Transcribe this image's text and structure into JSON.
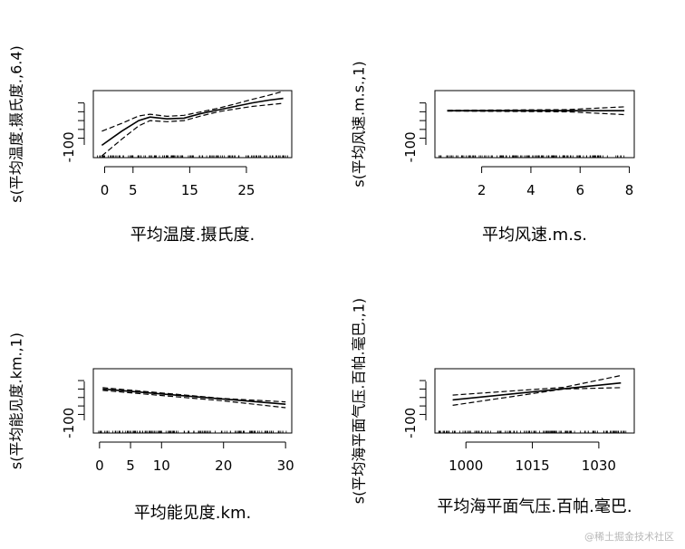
{
  "figure": {
    "type": "gam-partial-effect-panels",
    "watermark": "@稀土掘金技术社区"
  },
  "colors": {
    "axis": "#000000",
    "fit": "#000000",
    "band": "#000000",
    "rug": "#000000",
    "background": "#ffffff"
  },
  "chart_data": [
    {
      "type": "line",
      "xlabel": "平均温度.摄氏度.",
      "ylabel": "s(平均温度.摄氏度.,6.4)",
      "xticks": [
        0,
        5,
        15,
        25
      ],
      "yticks": [
        -100
      ],
      "xlim": [
        -2,
        33
      ],
      "ylim": [
        -130,
        60
      ],
      "series": [
        {
          "role": "fit",
          "x": [
            -0.5,
            3,
            6,
            8,
            11,
            14,
            17,
            20,
            23,
            26,
            29,
            31.5
          ],
          "values": [
            -95,
            -55,
            -25,
            -15,
            -20,
            -18,
            -5,
            5,
            15,
            25,
            33,
            38
          ]
        },
        {
          "role": "upper",
          "x": [
            -0.5,
            3,
            6,
            8,
            11,
            14,
            17,
            20,
            23,
            26,
            29,
            31.5
          ],
          "values": [
            -55,
            -33,
            -12,
            -7,
            -13,
            -10,
            0,
            10,
            22,
            35,
            47,
            58
          ]
        },
        {
          "role": "lower",
          "x": [
            -0.5,
            3,
            6,
            8,
            11,
            14,
            17,
            20,
            23,
            26,
            29,
            31.5
          ],
          "values": [
            -125,
            -78,
            -40,
            -25,
            -28,
            -25,
            -12,
            0,
            8,
            15,
            20,
            24
          ]
        }
      ]
    },
    {
      "type": "line",
      "xlabel": "平均风速.m.s.",
      "ylabel": "s(平均风速.m.s.,1)",
      "xticks": [
        2,
        4,
        6,
        8
      ],
      "yticks": [
        -100
      ],
      "xlim": [
        0.1,
        8.2
      ],
      "ylim": [
        -130,
        60
      ],
      "series": [
        {
          "role": "fit",
          "x": [
            0.6,
            7.8
          ],
          "values": [
            3,
            3
          ]
        },
        {
          "role": "upper",
          "x": [
            0.6,
            5.5,
            7.8
          ],
          "values": [
            4,
            6,
            14
          ]
        },
        {
          "role": "lower",
          "x": [
            0.6,
            5.5,
            7.8
          ],
          "values": [
            2,
            0,
            -8
          ]
        }
      ]
    },
    {
      "type": "line",
      "xlabel": "平均能见度.km.",
      "ylabel": "s(平均能见度.km.,1)",
      "xticks": [
        0,
        5,
        10,
        20,
        30
      ],
      "yticks": [
        -100
      ],
      "xlim": [
        -1,
        31
      ],
      "ylim": [
        -130,
        60
      ],
      "series": [
        {
          "role": "fit",
          "x": [
            0.5,
            30
          ],
          "values": [
            0,
            -45
          ]
        },
        {
          "role": "upper",
          "x": [
            0.5,
            20,
            30
          ],
          "values": [
            4,
            -28,
            -38
          ]
        },
        {
          "role": "lower",
          "x": [
            0.5,
            20,
            30
          ],
          "values": [
            -4,
            -35,
            -55
          ]
        }
      ]
    },
    {
      "type": "line",
      "xlabel": "平均海平面气压.百帕.毫巴.",
      "ylabel": "s(平均海平面气压.百帕.毫巴.,1)",
      "xticks": [
        1000,
        1015,
        1030
      ],
      "yticks": [
        -100
      ],
      "xlim": [
        993,
        1038
      ],
      "ylim": [
        -130,
        60
      ],
      "series": [
        {
          "role": "fit",
          "x": [
            997,
            1035
          ],
          "values": [
            -32,
            18
          ]
        },
        {
          "role": "upper",
          "x": [
            997,
            1022,
            1035
          ],
          "values": [
            -18,
            5,
            40
          ]
        },
        {
          "role": "lower",
          "x": [
            997,
            1022,
            1035
          ],
          "values": [
            -48,
            0,
            4
          ]
        }
      ]
    }
  ]
}
